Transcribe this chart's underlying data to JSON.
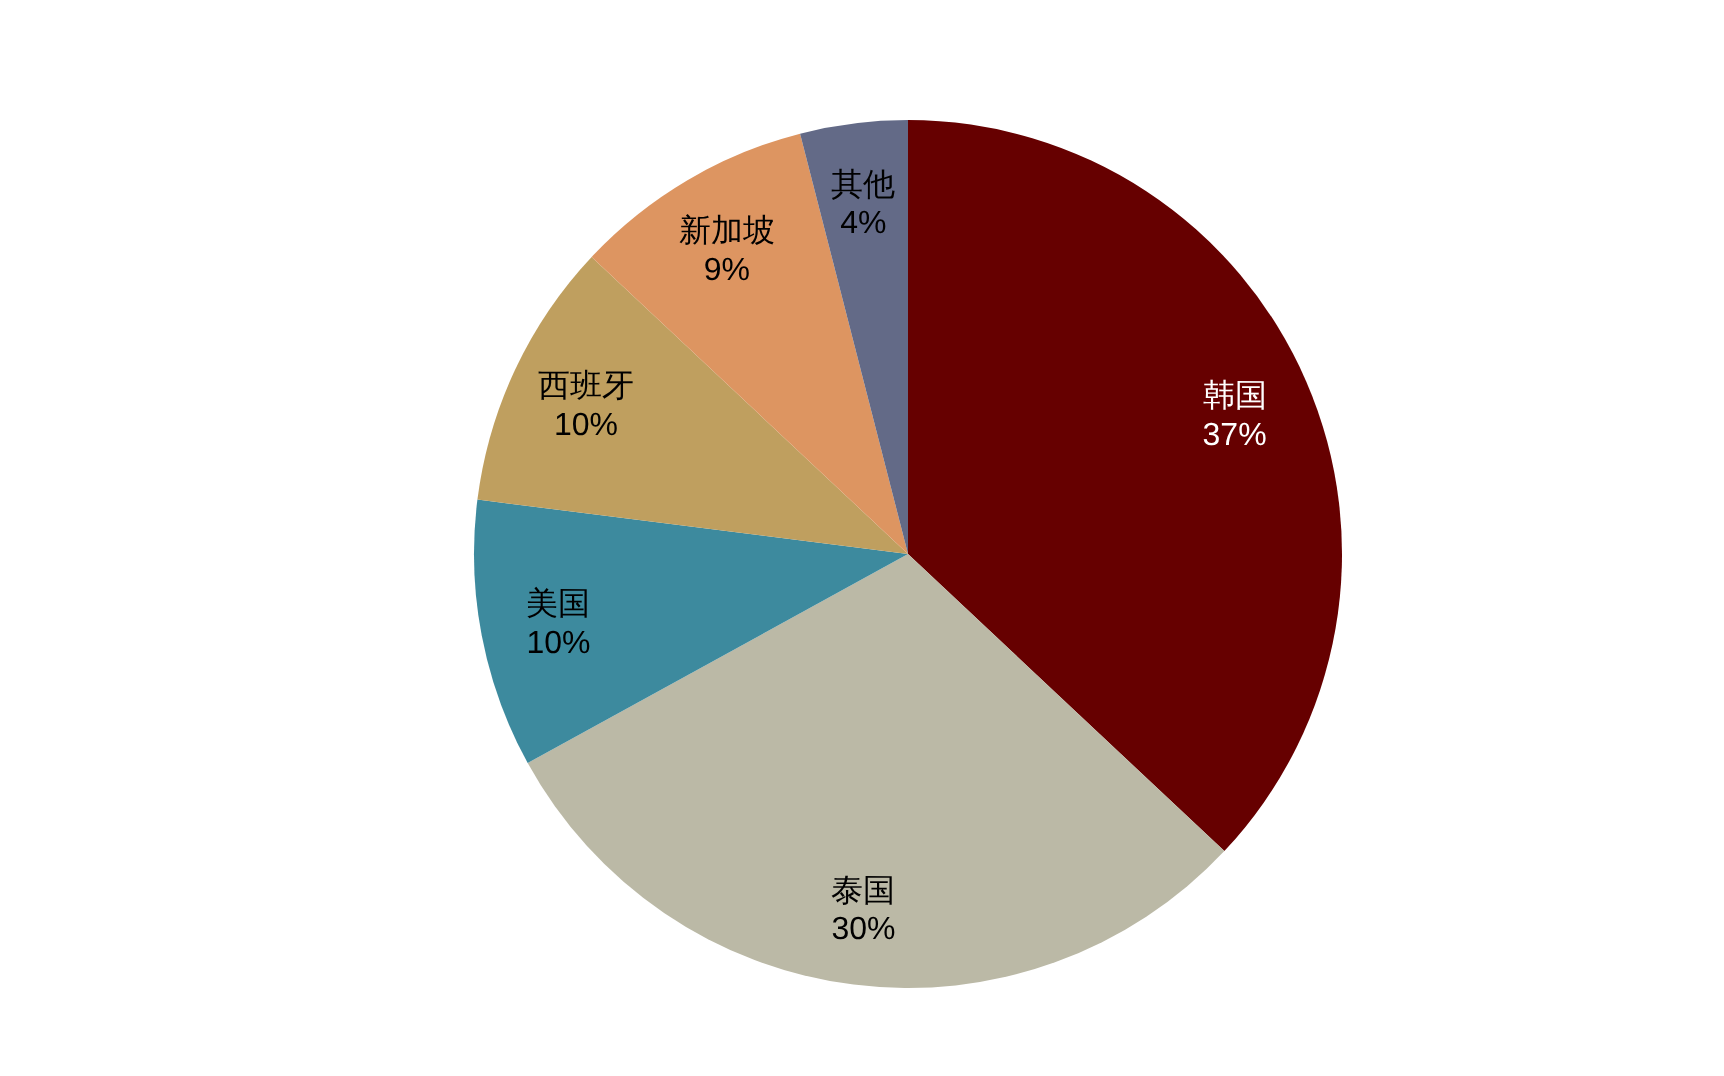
{
  "chart_data": {
    "type": "pie",
    "categories": [
      "韩国",
      "泰国",
      "美国",
      "西班牙",
      "新加坡",
      "其他"
    ],
    "values": [
      37,
      30,
      10,
      10,
      9,
      4
    ],
    "colors": [
      "#660000",
      "#bbb9a6",
      "#3d8a9e",
      "#bf9f5f",
      "#dd9561",
      "#636a87"
    ],
    "value_labels": [
      "37%",
      "30%",
      "10%",
      "10%",
      "9%",
      "4%"
    ]
  }
}
